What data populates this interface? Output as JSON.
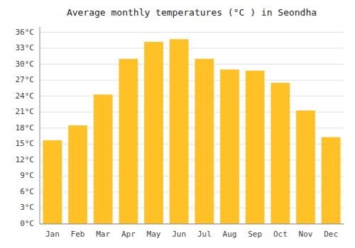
{
  "chart_data": {
    "type": "bar",
    "title": "Average monthly temperatures (°C ) in Seondha",
    "categories": [
      "Jan",
      "Feb",
      "Mar",
      "Apr",
      "May",
      "Jun",
      "Jul",
      "Aug",
      "Sep",
      "Oct",
      "Nov",
      "Dec"
    ],
    "values": [
      15.7,
      18.5,
      24.3,
      31.0,
      34.2,
      34.7,
      31.0,
      29.0,
      28.8,
      26.5,
      21.3,
      16.3
    ],
    "color": "#FFC125",
    "ylim": [
      0,
      37
    ],
    "yticks": [
      {
        "value": 0,
        "label": "0°C"
      },
      {
        "value": 3,
        "label": "3°C"
      },
      {
        "value": 6,
        "label": "6°C"
      },
      {
        "value": 9,
        "label": "9°C"
      },
      {
        "value": 12,
        "label": "12°C"
      },
      {
        "value": 15,
        "label": "15°C"
      },
      {
        "value": 18,
        "label": "18°C"
      },
      {
        "value": 21,
        "label": "21°C"
      },
      {
        "value": 24,
        "label": "24°C"
      },
      {
        "value": 27,
        "label": "27°C"
      },
      {
        "value": 30,
        "label": "30°C"
      },
      {
        "value": 33,
        "label": "33°C"
      },
      {
        "value": 36,
        "label": "36°C"
      }
    ],
    "grid": true
  }
}
